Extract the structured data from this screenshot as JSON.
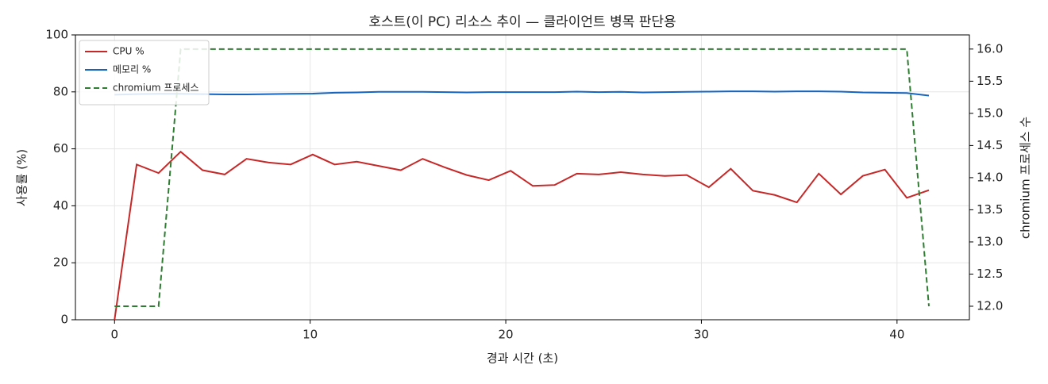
{
  "chart_data": {
    "type": "line",
    "title": "호스트(이 PC) 리소스 추이 — 클라이언트 병목 판단용",
    "x_label": "경과 시간 (초)",
    "y_label": "사용률 (%)",
    "y2_label": "chromium 프로세스 수",
    "x": [
      0,
      1.13,
      2.25,
      3.38,
      4.5,
      5.63,
      6.75,
      7.88,
      9,
      10.13,
      11.25,
      12.38,
      13.5,
      14.63,
      15.75,
      16.88,
      18,
      19.13,
      20.25,
      21.38,
      22.5,
      23.63,
      24.75,
      25.88,
      27,
      28.13,
      29.25,
      30.38,
      31.5,
      32.63,
      33.75,
      34.88,
      36,
      37.13,
      38.25,
      39.38,
      40.5,
      41.63
    ],
    "series": [
      {
        "name": "CPU %",
        "color": "#c62828",
        "linestyle": "solid",
        "values": [
          0,
          54.5,
          51.5,
          59,
          52.5,
          51,
          56.5,
          55.2,
          54.5,
          58,
          54.5,
          55.5,
          54,
          52.5,
          56.5,
          53.5,
          50.8,
          49,
          52.3,
          47,
          47.3,
          51.3,
          51,
          51.8,
          51,
          50.5,
          50.8,
          46.5,
          53,
          45.3,
          43.8,
          41.2,
          51.3,
          44,
          50.5,
          52.7,
          42.8,
          45.5
        ]
      },
      {
        "name": "메모리 %",
        "color": "#1565c0",
        "linestyle": "solid",
        "values": [
          79.0,
          79.2,
          79.3,
          79.3,
          79.2,
          79.1,
          79.1,
          79.2,
          79.3,
          79.4,
          79.7,
          79.8,
          80.0,
          80.0,
          80.0,
          79.9,
          79.8,
          79.9,
          79.9,
          79.9,
          79.9,
          80.1,
          79.9,
          80.0,
          79.8,
          79.9,
          80.0,
          80.1,
          80.2,
          80.2,
          80.1,
          80.2,
          80.2,
          80.1,
          79.8,
          79.7,
          79.6,
          78.7
        ]
      },
      {
        "name": "chromium 프로세스",
        "color": "#2e7d32",
        "linestyle": "dashed",
        "axis": "y2",
        "values": [
          12,
          12,
          12,
          16,
          16,
          16,
          16,
          16,
          16,
          16,
          16,
          16,
          16,
          16,
          16,
          16,
          16,
          16,
          16,
          16,
          16,
          16,
          16,
          16,
          16,
          16,
          16,
          16,
          16,
          16,
          16,
          16,
          16,
          16,
          16,
          16,
          16,
          12
        ]
      }
    ],
    "xlim": [
      -2,
      43.7
    ],
    "xticks": [
      0,
      10,
      20,
      30,
      40
    ],
    "ylim": [
      0,
      100
    ],
    "yticks": [
      0,
      20,
      40,
      60,
      80,
      100
    ],
    "y2lim": [
      11.79,
      16.22
    ],
    "y2ticks": [
      {
        "value": 12,
        "label": "12.0"
      },
      12.5,
      {
        "value": 13,
        "label": "13.0"
      },
      13.5,
      {
        "value": 14,
        "label": "14.0"
      },
      14.5,
      {
        "value": 15,
        "label": "15.0"
      },
      15.5,
      {
        "value": 16,
        "label": "16.0"
      }
    ],
    "grid": true,
    "legend": "upper-left"
  }
}
